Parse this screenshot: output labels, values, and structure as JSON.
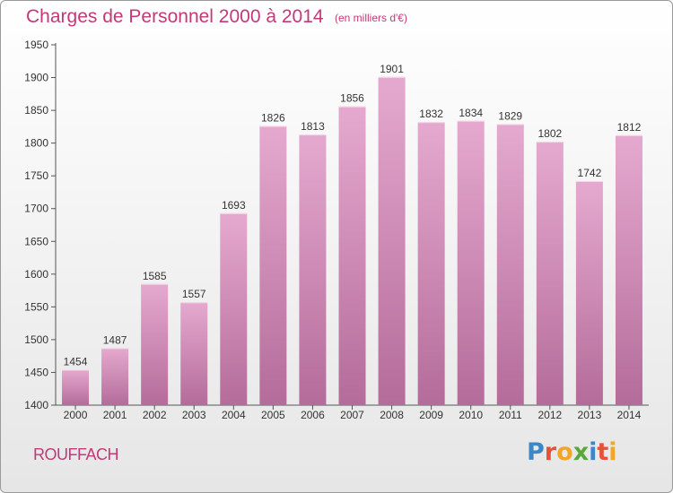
{
  "chart_data": {
    "type": "bar",
    "title": "Charges de Personnel 2000 à 2014",
    "subtitle": "(en milliers d'€)",
    "categories": [
      "2000",
      "2001",
      "2002",
      "2003",
      "2004",
      "2005",
      "2006",
      "2007",
      "2008",
      "2009",
      "2010",
      "2011",
      "2012",
      "2013",
      "2014"
    ],
    "values": [
      1454,
      1487,
      1585,
      1557,
      1693,
      1826,
      1813,
      1856,
      1901,
      1832,
      1834,
      1829,
      1802,
      1742,
      1812
    ],
    "ylim": [
      1400,
      1950
    ],
    "yticks": [
      1400,
      1450,
      1500,
      1550,
      1600,
      1650,
      1700,
      1750,
      1800,
      1850,
      1900,
      1950
    ],
    "grid": false,
    "bar_color_top": "#e5a9cf",
    "bar_color_bottom": "#b46c9a"
  },
  "footer": {
    "city": "ROUFFACH"
  },
  "logo": {
    "letters": [
      {
        "ch": "P",
        "color": "#3b87c8"
      },
      {
        "ch": "r",
        "color": "#e8503a"
      },
      {
        "ch": "o",
        "color": "#f2a623"
      },
      {
        "ch": "x",
        "color": "#5aa83c"
      },
      {
        "ch": "i",
        "color": "#3b87c8"
      },
      {
        "ch": "t",
        "color": "#e8503a"
      },
      {
        "ch": "i",
        "color": "#f2a623"
      }
    ]
  }
}
